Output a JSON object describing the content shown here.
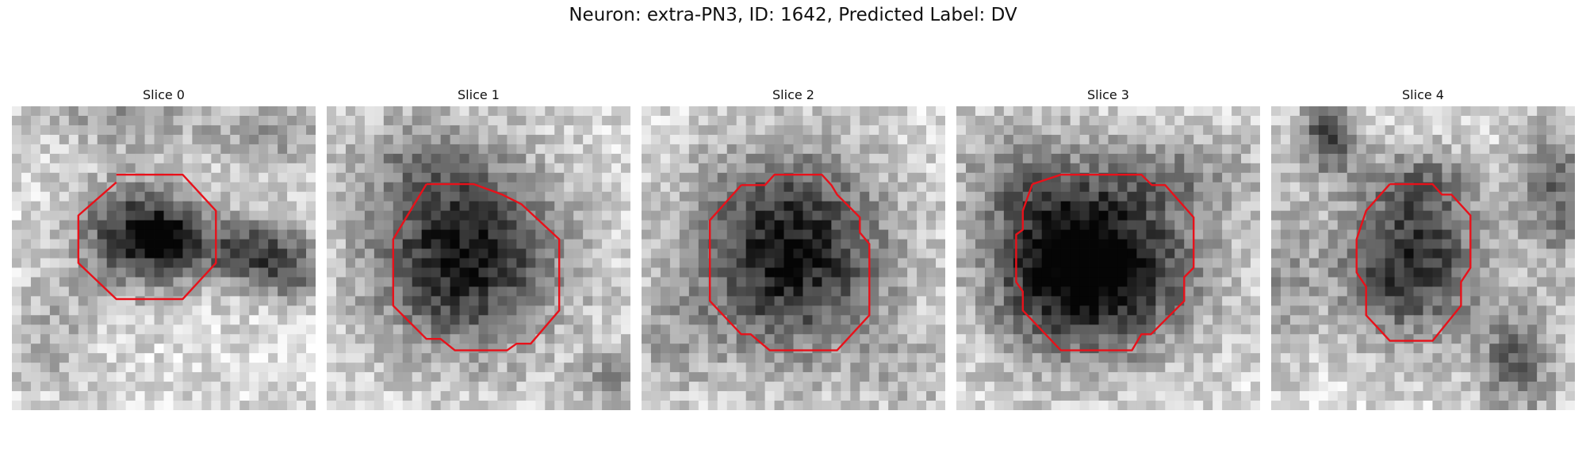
{
  "figure": {
    "title": "Neuron: extra-PN3, ID: 1642, Predicted Label: DV"
  },
  "panels": [
    {
      "title": "Slice 0"
    },
    {
      "title": "Slice 1"
    },
    {
      "title": "Slice 2"
    },
    {
      "title": "Slice 3"
    },
    {
      "title": "Slice 4"
    }
  ],
  "colors": {
    "contour": "#e8111a",
    "background": "#ffffff"
  }
}
